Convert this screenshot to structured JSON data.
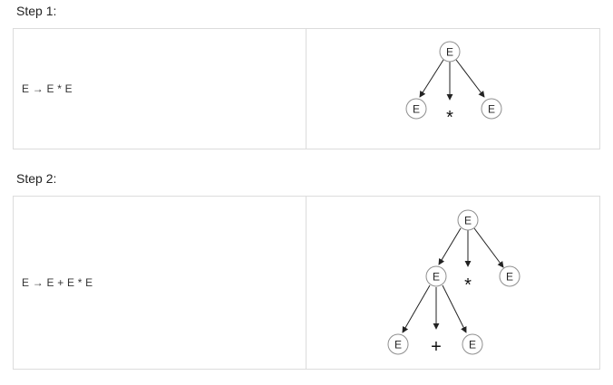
{
  "steps": [
    {
      "label": "Step 1:",
      "production": "E → E * E",
      "tree": {
        "nodes": [
          "E",
          "E",
          "E"
        ],
        "operator": "*"
      }
    },
    {
      "label": "Step 2:",
      "production": "E → E + E * E",
      "tree": {
        "nodes": [
          "E",
          "E",
          "E",
          "E",
          "E"
        ],
        "operators": [
          "*",
          "+"
        ]
      }
    }
  ]
}
